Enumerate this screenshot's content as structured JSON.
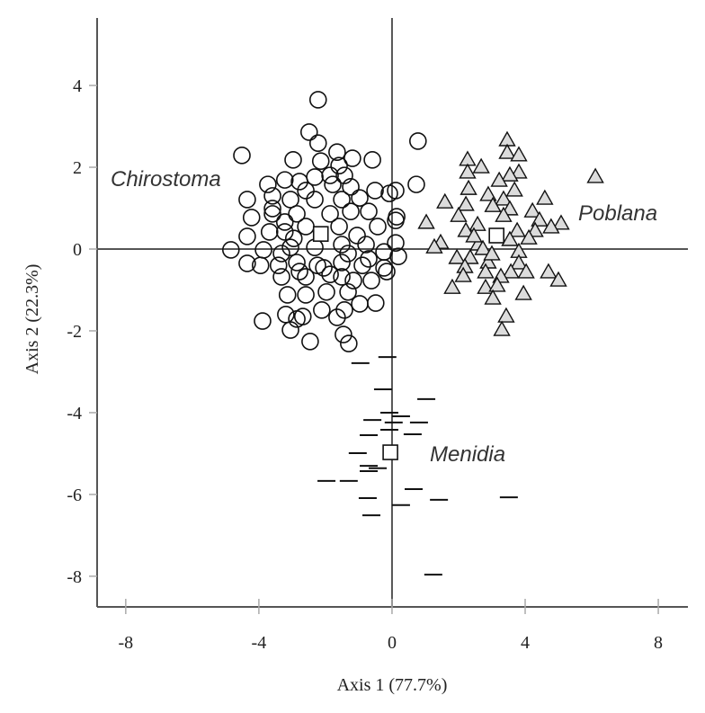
{
  "chart_data": {
    "type": "scatter",
    "xlabel": "Axis 1 (77.7%)",
    "ylabel": "Axis 2 (22.3%)",
    "xlim": [
      -8.86,
      8.89
    ],
    "ylim": [
      -8.75,
      5.65
    ],
    "xticks": [
      -8,
      -4,
      0,
      4,
      8
    ],
    "yticks": [
      4,
      2,
      0,
      -2,
      -4,
      -6,
      -8
    ],
    "xtick_labels": [
      "-8",
      "-4",
      "0",
      "4",
      "8"
    ],
    "ytick_labels": [
      "4",
      "2",
      "0",
      "-2",
      "-4",
      "-6",
      "-8"
    ],
    "grid": false,
    "zero_lines": true,
    "colors": {
      "marker_stroke": "#111111",
      "triangle_fill": "#dcdcdc",
      "axis": "#555555"
    },
    "series": [
      {
        "name": "Chirostoma",
        "marker": "circle",
        "centroid": [
          -2.14,
          0.37
        ],
        "points": [
          [
            -2.22,
            3.65
          ],
          [
            -2.49,
            2.86
          ],
          [
            -2.22,
            2.59
          ],
          [
            -4.51,
            2.29
          ],
          [
            -2.97,
            2.18
          ],
          [
            -1.65,
            2.37
          ],
          [
            -1.19,
            2.22
          ],
          [
            -0.59,
            2.18
          ],
          [
            -2.14,
            2.15
          ],
          [
            -1.59,
            2.04
          ],
          [
            -3.73,
            1.58
          ],
          [
            -3.22,
            1.69
          ],
          [
            -2.78,
            1.65
          ],
          [
            -2.32,
            1.76
          ],
          [
            -1.86,
            1.8
          ],
          [
            -1.43,
            1.8
          ],
          [
            -0.51,
            1.43
          ],
          [
            0.11,
            1.43
          ],
          [
            -4.35,
            1.21
          ],
          [
            -3.59,
            1.3
          ],
          [
            -3.05,
            1.21
          ],
          [
            -2.32,
            1.21
          ],
          [
            -1.51,
            1.21
          ],
          [
            -0.97,
            1.25
          ],
          [
            -4.22,
            0.77
          ],
          [
            -3.59,
            0.86
          ],
          [
            -2.86,
            0.86
          ],
          [
            -1.86,
            0.86
          ],
          [
            -1.24,
            0.92
          ],
          [
            -0.7,
            0.92
          ],
          [
            0.11,
            0.7
          ],
          [
            -4.35,
            0.31
          ],
          [
            -3.68,
            0.42
          ],
          [
            -3.22,
            0.42
          ],
          [
            -2.59,
            0.55
          ],
          [
            -1.59,
            0.55
          ],
          [
            -1.05,
            0.33
          ],
          [
            -0.43,
            0.55
          ],
          [
            0.11,
            0.15
          ],
          [
            -4.84,
            -0.02
          ],
          [
            -3.86,
            -0.02
          ],
          [
            -3.05,
            0.04
          ],
          [
            -2.32,
            0.04
          ],
          [
            -1.51,
            0.11
          ],
          [
            -0.78,
            0.11
          ],
          [
            -0.24,
            -0.07
          ],
          [
            -4.35,
            -0.35
          ],
          [
            -3.95,
            -0.4
          ],
          [
            -3.41,
            -0.4
          ],
          [
            -2.86,
            -0.33
          ],
          [
            -2.24,
            -0.4
          ],
          [
            -1.51,
            -0.33
          ],
          [
            -0.89,
            -0.4
          ],
          [
            -0.16,
            -0.55
          ],
          [
            0.19,
            -0.18
          ],
          [
            -3.32,
            -0.68
          ],
          [
            -2.59,
            -0.68
          ],
          [
            -1.86,
            -0.62
          ],
          [
            -1.16,
            -0.77
          ],
          [
            -0.62,
            -0.77
          ],
          [
            -3.14,
            -1.12
          ],
          [
            -2.59,
            -1.12
          ],
          [
            -1.97,
            -1.05
          ],
          [
            -1.32,
            -1.05
          ],
          [
            -0.97,
            -1.34
          ],
          [
            -0.49,
            -1.32
          ],
          [
            -3.89,
            -1.76
          ],
          [
            -3.19,
            -1.6
          ],
          [
            -2.68,
            -1.65
          ],
          [
            -2.11,
            -1.49
          ],
          [
            -1.43,
            -1.49
          ],
          [
            -1.65,
            -1.67
          ],
          [
            -3.05,
            -1.98
          ],
          [
            -2.46,
            -2.26
          ],
          [
            -1.46,
            -2.09
          ],
          [
            -1.3,
            -2.31
          ],
          [
            -2.86,
            -1.71
          ],
          [
            -3.59,
            0.99
          ],
          [
            -3.22,
            0.66
          ],
          [
            -2.95,
            0.26
          ],
          [
            -1.32,
            -0.11
          ],
          [
            -0.7,
            -0.24
          ],
          [
            -0.24,
            -0.46
          ],
          [
            -2.78,
            -0.55
          ],
          [
            -2.05,
            -0.46
          ],
          [
            -1.51,
            -0.68
          ],
          [
            -1.78,
            1.58
          ],
          [
            -1.24,
            1.52
          ],
          [
            -2.59,
            1.43
          ],
          [
            -3.32,
            -0.11
          ],
          [
            0.78,
            2.64
          ],
          [
            0.73,
            1.58
          ],
          [
            0.14,
            0.79
          ],
          [
            -0.08,
            1.36
          ]
        ]
      },
      {
        "name": "Poblana",
        "marker": "triangle",
        "centroid": [
          3.14,
          0.33
        ],
        "points": [
          [
            3.46,
            2.66
          ],
          [
            3.46,
            2.35
          ],
          [
            3.81,
            2.29
          ],
          [
            2.27,
            2.18
          ],
          [
            2.68,
            2.0
          ],
          [
            2.27,
            1.87
          ],
          [
            3.81,
            1.87
          ],
          [
            3.54,
            1.8
          ],
          [
            6.11,
            1.76
          ],
          [
            3.22,
            1.67
          ],
          [
            2.3,
            1.47
          ],
          [
            3.68,
            1.43
          ],
          [
            2.89,
            1.32
          ],
          [
            3.35,
            1.21
          ],
          [
            4.59,
            1.23
          ],
          [
            1.59,
            1.14
          ],
          [
            2.22,
            1.08
          ],
          [
            3.03,
            1.05
          ],
          [
            3.54,
            0.97
          ],
          [
            4.22,
            0.92
          ],
          [
            1.03,
            0.64
          ],
          [
            4.43,
            0.7
          ],
          [
            5.08,
            0.62
          ],
          [
            4.78,
            0.53
          ],
          [
            2.57,
            0.59
          ],
          [
            2.22,
            0.44
          ],
          [
            3.76,
            0.44
          ],
          [
            4.3,
            0.44
          ],
          [
            4.11,
            0.26
          ],
          [
            1.46,
            0.15
          ],
          [
            1.27,
            0.04
          ],
          [
            2.59,
            0.11
          ],
          [
            1.95,
            -0.22
          ],
          [
            3.81,
            -0.07
          ],
          [
            2.35,
            -0.22
          ],
          [
            2.89,
            -0.33
          ],
          [
            3.81,
            -0.35
          ],
          [
            4.7,
            -0.57
          ],
          [
            5.0,
            -0.77
          ],
          [
            4.03,
            -0.57
          ],
          [
            2.19,
            -0.44
          ],
          [
            2.81,
            -0.57
          ],
          [
            3.57,
            -0.57
          ],
          [
            2.14,
            -0.66
          ],
          [
            3.27,
            -0.68
          ],
          [
            1.81,
            -0.95
          ],
          [
            2.81,
            -0.95
          ],
          [
            3.16,
            -0.9
          ],
          [
            3.95,
            -1.1
          ],
          [
            3.03,
            -1.21
          ],
          [
            3.43,
            -1.65
          ],
          [
            3.3,
            -1.98
          ],
          [
            3.35,
            0.81
          ],
          [
            3.54,
            0.22
          ],
          [
            2.73,
            0.0
          ],
          [
            3.0,
            -0.13
          ],
          [
            2.46,
            0.31
          ],
          [
            2.0,
            0.81
          ]
        ]
      },
      {
        "name": "Menidia",
        "marker": "dash",
        "centroid": [
          -0.05,
          -4.97
        ],
        "points": [
          [
            -0.14,
            -2.64
          ],
          [
            -0.95,
            -2.79
          ],
          [
            -0.27,
            -3.43
          ],
          [
            1.03,
            -3.67
          ],
          [
            -0.08,
            -4.0
          ],
          [
            0.27,
            -4.09
          ],
          [
            -0.59,
            -4.18
          ],
          [
            0.05,
            -4.24
          ],
          [
            0.81,
            -4.24
          ],
          [
            -0.08,
            -4.42
          ],
          [
            -0.7,
            -4.55
          ],
          [
            0.62,
            -4.53
          ],
          [
            -1.03,
            -4.99
          ],
          [
            -0.7,
            -5.3
          ],
          [
            -0.43,
            -5.36
          ],
          [
            -0.7,
            -5.43
          ],
          [
            -1.97,
            -5.67
          ],
          [
            -1.3,
            -5.67
          ],
          [
            0.65,
            -5.87
          ],
          [
            -0.73,
            -6.09
          ],
          [
            1.41,
            -6.13
          ],
          [
            3.51,
            -6.07
          ],
          [
            0.27,
            -6.26
          ],
          [
            -0.62,
            -6.51
          ],
          [
            1.24,
            -7.96
          ]
        ]
      }
    ]
  }
}
